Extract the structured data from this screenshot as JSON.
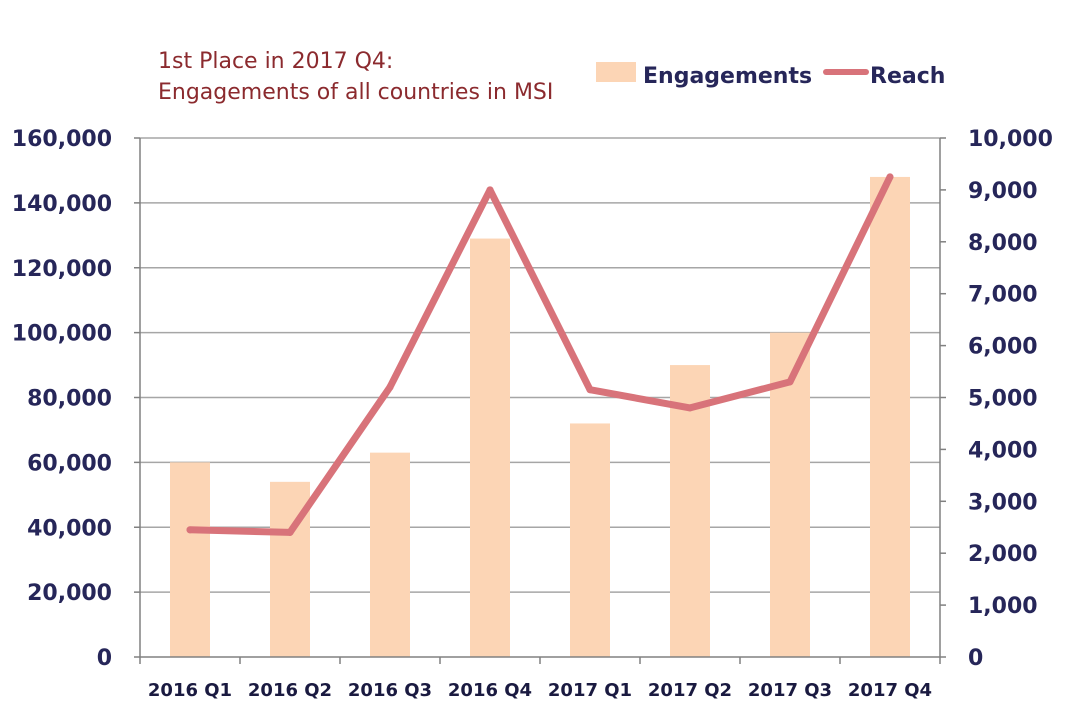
{
  "chart_data": {
    "type": "bar",
    "title_lines": [
      "1st Place in 2017 Q4:",
      "Engagements of all countries in MSI"
    ],
    "categories": [
      "2016 Q1",
      "2016 Q2",
      "2016 Q3",
      "2016 Q4",
      "2017 Q1",
      "2017 Q2",
      "2017 Q3",
      "2017 Q4"
    ],
    "series": [
      {
        "name": "Engagements",
        "type": "bar",
        "axis": "left",
        "color": "#fcd5b5",
        "values": [
          60000,
          54000,
          63000,
          129000,
          72000,
          90000,
          100000,
          148000
        ]
      },
      {
        "name": "Reach",
        "type": "line",
        "axis": "right",
        "color": "#d8737a",
        "values": [
          2450,
          2400,
          5200,
          9000,
          5150,
          4800,
          5300,
          9250
        ]
      }
    ],
    "y_left": {
      "min": 0,
      "max": 160000,
      "step": 20000,
      "tick_labels": [
        "0",
        "20,000",
        "40,000",
        "60,000",
        "80,000",
        "100,000",
        "120,000",
        "140,000",
        "160,000"
      ]
    },
    "y_right": {
      "min": 0,
      "max": 10000,
      "step": 1000,
      "tick_labels": [
        "0",
        "1,000",
        "2,000",
        "3,000",
        "4,000",
        "5,000",
        "6,000",
        "7,000",
        "8,000",
        "9,000",
        "10,000"
      ]
    },
    "grid": true,
    "legend_position": "top-right",
    "colors": {
      "title": "#8b2a2e",
      "tick_text": "#262659",
      "grid": "#a6a6a6",
      "axis": "#808080"
    }
  }
}
